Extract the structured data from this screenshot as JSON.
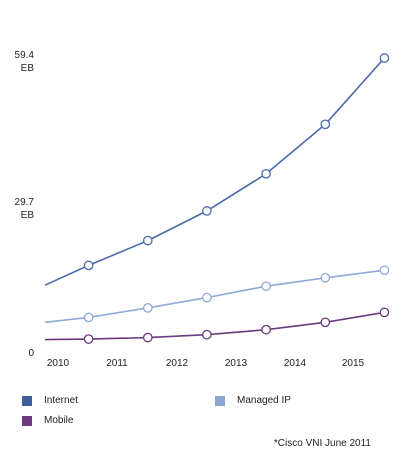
{
  "chart_data": {
    "type": "line",
    "source": "*Cisco VNI June 2011",
    "y_ticks": [
      {
        "value": 59.4,
        "lines": [
          "59.4",
          "EB"
        ]
      },
      {
        "value": 29.7,
        "lines": [
          "29.7",
          "EB"
        ]
      },
      {
        "value": 0,
        "lines": [
          "0"
        ]
      }
    ],
    "ylim": [
      0,
      59.4
    ],
    "x_tick_labels": [
      "2010",
      "2011",
      "2012",
      "2013",
      "2014",
      "2015"
    ],
    "xlim": [
      2010,
      2015.7
    ],
    "grid": false,
    "legend_position": "bottom",
    "series": [
      {
        "name": "Internet",
        "color": "#4a6aaa",
        "legend_color": "#3e5f9e",
        "start": {
          "x": 2010,
          "y": 13.5
        },
        "points": [
          {
            "x": 2010.7,
            "y": 17.5
          },
          {
            "x": 2011.65,
            "y": 22.5
          },
          {
            "x": 2012.6,
            "y": 28.5
          },
          {
            "x": 2013.55,
            "y": 36.0
          },
          {
            "x": 2014.5,
            "y": 46.0
          },
          {
            "x": 2015.45,
            "y": 59.4
          }
        ]
      },
      {
        "name": "Managed IP",
        "color": "#8eaad8",
        "legend_color": "#8aa6d4",
        "start": {
          "x": 2010,
          "y": 6.0
        },
        "points": [
          {
            "x": 2010.7,
            "y": 7.0
          },
          {
            "x": 2011.65,
            "y": 8.9
          },
          {
            "x": 2012.6,
            "y": 11.0
          },
          {
            "x": 2013.55,
            "y": 13.3
          },
          {
            "x": 2014.5,
            "y": 15.0
          },
          {
            "x": 2015.45,
            "y": 16.5
          }
        ]
      },
      {
        "name": "Mobile",
        "color": "#6a3a80",
        "legend_color": "#6a3a80",
        "start": {
          "x": 2010,
          "y": 2.5
        },
        "points": [
          {
            "x": 2010.7,
            "y": 2.6
          },
          {
            "x": 2011.65,
            "y": 2.9
          },
          {
            "x": 2012.6,
            "y": 3.5
          },
          {
            "x": 2013.55,
            "y": 4.5
          },
          {
            "x": 2014.5,
            "y": 6.0
          },
          {
            "x": 2015.45,
            "y": 8.0
          }
        ]
      }
    ]
  }
}
